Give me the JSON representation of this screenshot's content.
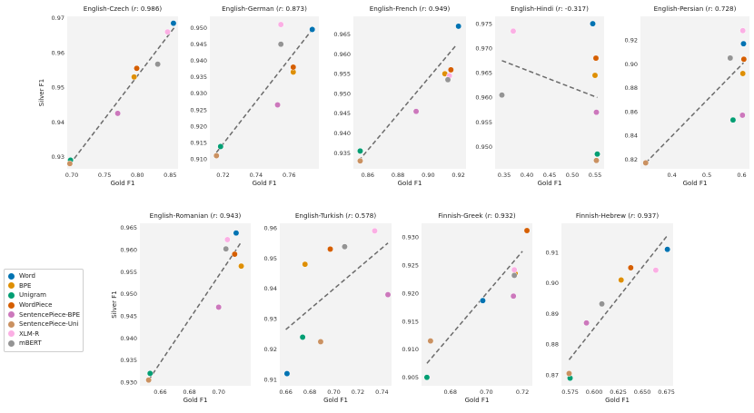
{
  "legend": {
    "items": [
      {
        "name": "Word",
        "color": "#0173b2"
      },
      {
        "name": "BPE",
        "color": "#de8f05"
      },
      {
        "name": "Unigram",
        "color": "#029e73"
      },
      {
        "name": "WordPiece",
        "color": "#d55e00"
      },
      {
        "name": "SentencePiece-BPE",
        "color": "#cc78bc"
      },
      {
        "name": "SentencePiece-Uni",
        "color": "#ca9161"
      },
      {
        "name": "XLM-R",
        "color": "#fbafe4"
      },
      {
        "name": "mBERT",
        "color": "#949494"
      }
    ]
  },
  "chart_data": [
    {
      "type": "scatter",
      "title": "English-Czech",
      "r": "0.986",
      "xlabel": "Gold F1",
      "ylabel": "Silver F1",
      "xlim": [
        0.693,
        0.862
      ],
      "ylim": [
        0.9265,
        0.9705
      ],
      "xticks": [
        "0.70",
        "0.75",
        "0.80",
        "0.85"
      ],
      "yticks": [
        "0.93",
        "0.94",
        "0.95",
        "0.96",
        "0.97"
      ],
      "xtick_values": [
        0.7,
        0.75,
        0.8,
        0.85
      ],
      "ytick_values": [
        0.93,
        0.94,
        0.95,
        0.96,
        0.97
      ],
      "trend": [
        [
          0.697,
          0.9278
        ],
        [
          0.856,
          0.9672
        ]
      ],
      "points": [
        {
          "name": "Word",
          "x": 0.855,
          "y": 0.9685
        },
        {
          "name": "BPE",
          "x": 0.795,
          "y": 0.953
        },
        {
          "name": "Unigram",
          "x": 0.698,
          "y": 0.929
        },
        {
          "name": "WordPiece",
          "x": 0.799,
          "y": 0.9555
        },
        {
          "name": "SentencePiece-BPE",
          "x": 0.77,
          "y": 0.9425
        },
        {
          "name": "SentencePiece-Uni",
          "x": 0.697,
          "y": 0.928
        },
        {
          "name": "XLM-R",
          "x": 0.846,
          "y": 0.966
        },
        {
          "name": "mBERT",
          "x": 0.831,
          "y": 0.9567
        }
      ]
    },
    {
      "type": "scatter",
      "title": "English-German",
      "r": "0.873",
      "xlabel": "Gold F1",
      "ylabel": "",
      "xlim": [
        0.712,
        0.778
      ],
      "ylim": [
        0.907,
        0.9535
      ],
      "xticks": [
        "0.72",
        "0.74",
        "0.76"
      ],
      "yticks": [
        "0.910",
        "0.915",
        "0.920",
        "0.925",
        "0.930",
        "0.935",
        "0.940",
        "0.945",
        "0.950"
      ],
      "xtick_values": [
        0.72,
        0.74,
        0.76
      ],
      "ytick_values": [
        0.91,
        0.915,
        0.92,
        0.925,
        0.93,
        0.935,
        0.94,
        0.945,
        0.95
      ],
      "trend": [
        [
          0.716,
          0.912
        ],
        [
          0.774,
          0.9495
        ]
      ],
      "points": [
        {
          "name": "Word",
          "x": 0.774,
          "y": 0.9495
        },
        {
          "name": "BPE",
          "x": 0.7625,
          "y": 0.9365
        },
        {
          "name": "Unigram",
          "x": 0.7185,
          "y": 0.9138
        },
        {
          "name": "WordPiece",
          "x": 0.7625,
          "y": 0.938
        },
        {
          "name": "SentencePiece-BPE",
          "x": 0.753,
          "y": 0.9265
        },
        {
          "name": "SentencePiece-Uni",
          "x": 0.716,
          "y": 0.911
        },
        {
          "name": "XLM-R",
          "x": 0.755,
          "y": 0.951
        },
        {
          "name": "mBERT",
          "x": 0.755,
          "y": 0.945
        }
      ]
    },
    {
      "type": "scatter",
      "title": "English-French",
      "r": "0.949",
      "xlabel": "Gold F1",
      "ylabel": "",
      "xlim": [
        0.8505,
        0.925
      ],
      "ylim": [
        0.931,
        0.9695
      ],
      "xticks": [
        "0.86",
        "0.88",
        "0.90",
        "0.92"
      ],
      "yticks": [
        "0.935",
        "0.940",
        "0.945",
        "0.950",
        "0.955",
        "0.960",
        "0.965"
      ],
      "xtick_values": [
        0.86,
        0.88,
        0.9,
        0.92
      ],
      "ytick_values": [
        0.935,
        0.94,
        0.945,
        0.95,
        0.955,
        0.96,
        0.965
      ],
      "trend": [
        [
          0.854,
          0.933
        ],
        [
          0.918,
          0.962
        ]
      ],
      "points": [
        {
          "name": "Word",
          "x": 0.92,
          "y": 0.967
        },
        {
          "name": "BPE",
          "x": 0.911,
          "y": 0.955
        },
        {
          "name": "Unigram",
          "x": 0.855,
          "y": 0.9355
        },
        {
          "name": "WordPiece",
          "x": 0.915,
          "y": 0.956
        },
        {
          "name": "SentencePiece-BPE",
          "x": 0.892,
          "y": 0.9455
        },
        {
          "name": "SentencePiece-Uni",
          "x": 0.855,
          "y": 0.933
        },
        {
          "name": "XLM-R",
          "x": 0.914,
          "y": 0.9545
        },
        {
          "name": "mBERT",
          "x": 0.913,
          "y": 0.9535
        }
      ]
    },
    {
      "type": "scatter",
      "title": "English-Hindi",
      "r": "-0.317",
      "xlabel": "Gold F1",
      "ylabel": "",
      "xlim": [
        0.33,
        0.57
      ],
      "ylim": [
        0.9455,
        0.9765
      ],
      "xticks": [
        "0.35",
        "0.40",
        "0.45",
        "0.50",
        "0.55"
      ],
      "yticks": [
        "0.950",
        "0.955",
        "0.960",
        "0.965",
        "0.970",
        "0.975"
      ],
      "xtick_values": [
        0.35,
        0.4,
        0.45,
        0.5,
        0.55
      ],
      "ytick_values": [
        0.95,
        0.955,
        0.96,
        0.965,
        0.97,
        0.975
      ],
      "trend": [
        [
          0.345,
          0.9675
        ],
        [
          0.555,
          0.96
        ]
      ],
      "points": [
        {
          "name": "Word",
          "x": 0.545,
          "y": 0.975
        },
        {
          "name": "BPE",
          "x": 0.55,
          "y": 0.9645
        },
        {
          "name": "Unigram",
          "x": 0.555,
          "y": 0.9485
        },
        {
          "name": "WordPiece",
          "x": 0.552,
          "y": 0.968
        },
        {
          "name": "SentencePiece-BPE",
          "x": 0.553,
          "y": 0.957
        },
        {
          "name": "SentencePiece-Uni",
          "x": 0.553,
          "y": 0.9472
        },
        {
          "name": "XLM-R",
          "x": 0.37,
          "y": 0.9735
        },
        {
          "name": "mBERT",
          "x": 0.345,
          "y": 0.9605
        }
      ]
    },
    {
      "type": "scatter",
      "title": "English-Persian",
      "r": "0.728",
      "xlabel": "Gold F1",
      "ylabel": "",
      "xlim": [
        0.31,
        0.622
      ],
      "ylim": [
        0.812,
        0.94
      ],
      "xticks": [
        "0.4",
        "0.5",
        "0.6"
      ],
      "yticks": [
        "0.82",
        "0.84",
        "0.86",
        "0.88",
        "0.90",
        "0.92"
      ],
      "xtick_values": [
        0.4,
        0.5,
        0.6
      ],
      "ytick_values": [
        0.82,
        0.84,
        0.86,
        0.88,
        0.9,
        0.92
      ],
      "trend": [
        [
          0.325,
          0.817
        ],
        [
          0.605,
          0.901
        ]
      ],
      "points": [
        {
          "name": "Word",
          "x": 0.605,
          "y": 0.917
        },
        {
          "name": "BPE",
          "x": 0.603,
          "y": 0.892
        },
        {
          "name": "Unigram",
          "x": 0.575,
          "y": 0.853
        },
        {
          "name": "WordPiece",
          "x": 0.606,
          "y": 0.904
        },
        {
          "name": "SentencePiece-BPE",
          "x": 0.602,
          "y": 0.857
        },
        {
          "name": "SentencePiece-Uni",
          "x": 0.325,
          "y": 0.817
        },
        {
          "name": "XLM-R",
          "x": 0.603,
          "y": 0.928
        },
        {
          "name": "mBERT",
          "x": 0.567,
          "y": 0.905
        }
      ]
    },
    {
      "type": "scatter",
      "title": "English-Romanian",
      "r": "0.943",
      "xlabel": "Gold F1",
      "ylabel": "Silver F1",
      "xlim": [
        0.646,
        0.722
      ],
      "ylim": [
        0.9292,
        0.966
      ],
      "xticks": [
        "0.66",
        "0.68",
        "0.70"
      ],
      "yticks": [
        "0.930",
        "0.935",
        "0.940",
        "0.945",
        "0.950",
        "0.955",
        "0.960",
        "0.965"
      ],
      "xtick_values": [
        0.66,
        0.68,
        0.7
      ],
      "ytick_values": [
        0.93,
        0.935,
        0.94,
        0.945,
        0.95,
        0.955,
        0.96,
        0.965
      ],
      "trend": [
        [
          0.652,
          0.9305
        ],
        [
          0.715,
          0.9615
        ]
      ],
      "points": [
        {
          "name": "Word",
          "x": 0.712,
          "y": 0.9638
        },
        {
          "name": "BPE",
          "x": 0.7155,
          "y": 0.9563
        },
        {
          "name": "Unigram",
          "x": 0.653,
          "y": 0.932
        },
        {
          "name": "WordPiece",
          "x": 0.711,
          "y": 0.959
        },
        {
          "name": "SentencePiece-BPE",
          "x": 0.7,
          "y": 0.947
        },
        {
          "name": "SentencePiece-Uni",
          "x": 0.652,
          "y": 0.9305
        },
        {
          "name": "XLM-R",
          "x": 0.706,
          "y": 0.9623
        },
        {
          "name": "mBERT",
          "x": 0.705,
          "y": 0.9602
        }
      ]
    },
    {
      "type": "scatter",
      "title": "English-Turkish",
      "r": "0.578",
      "xlabel": "Gold F1",
      "ylabel": "",
      "xlim": [
        0.655,
        0.748
      ],
      "ylim": [
        0.908,
        0.9615
      ],
      "xticks": [
        "0.66",
        "0.68",
        "0.70",
        "0.72",
        "0.74"
      ],
      "yticks": [
        "0.91",
        "0.92",
        "0.93",
        "0.94",
        "0.95",
        "0.96"
      ],
      "xtick_values": [
        0.66,
        0.68,
        0.7,
        0.72,
        0.74
      ],
      "ytick_values": [
        0.91,
        0.92,
        0.93,
        0.94,
        0.95,
        0.96
      ],
      "trend": [
        [
          0.66,
          0.9265
        ],
        [
          0.745,
          0.955
        ]
      ],
      "points": [
        {
          "name": "Word",
          "x": 0.661,
          "y": 0.912
        },
        {
          "name": "BPE",
          "x": 0.676,
          "y": 0.948
        },
        {
          "name": "Unigram",
          "x": 0.674,
          "y": 0.924
        },
        {
          "name": "WordPiece",
          "x": 0.697,
          "y": 0.953
        },
        {
          "name": "SentencePiece-BPE",
          "x": 0.745,
          "y": 0.938
        },
        {
          "name": "SentencePiece-Uni",
          "x": 0.689,
          "y": 0.9225
        },
        {
          "name": "XLM-R",
          "x": 0.734,
          "y": 0.959
        },
        {
          "name": "mBERT",
          "x": 0.709,
          "y": 0.9538
        }
      ]
    },
    {
      "type": "scatter",
      "title": "Finnish-Greek",
      "r": "0.932",
      "xlabel": "Gold F1",
      "ylabel": "",
      "xlim": [
        0.664,
        0.7255
      ],
      "ylim": [
        0.9035,
        0.9325
      ],
      "xticks": [
        "0.68",
        "0.70",
        "0.72"
      ],
      "yticks": [
        "0.905",
        "0.910",
        "0.915",
        "0.920",
        "0.925",
        "0.930"
      ],
      "xtick_values": [
        0.68,
        0.7,
        0.72
      ],
      "ytick_values": [
        0.905,
        0.91,
        0.915,
        0.92,
        0.925,
        0.93
      ],
      "trend": [
        [
          0.667,
          0.9075
        ],
        [
          0.72,
          0.9275
        ]
      ],
      "points": [
        {
          "name": "Word",
          "x": 0.698,
          "y": 0.9187
        },
        {
          "name": "BPE",
          "x": 0.716,
          "y": 0.9235
        },
        {
          "name": "Unigram",
          "x": 0.667,
          "y": 0.905
        },
        {
          "name": "WordPiece",
          "x": 0.7225,
          "y": 0.9312
        },
        {
          "name": "SentencePiece-BPE",
          "x": 0.715,
          "y": 0.9195
        },
        {
          "name": "SentencePiece-Uni",
          "x": 0.669,
          "y": 0.9115
        },
        {
          "name": "XLM-R",
          "x": 0.7155,
          "y": 0.9242
        },
        {
          "name": "mBERT",
          "x": 0.7155,
          "y": 0.9232
        }
      ]
    },
    {
      "type": "scatter",
      "title": "Finnish-Hebrew",
      "r": "0.937",
      "xlabel": "Gold F1",
      "ylabel": "",
      "xlim": [
        0.566,
        0.682
      ],
      "ylim": [
        0.8665,
        0.9195
      ],
      "xticks": [
        "0.575",
        "0.600",
        "0.625",
        "0.650",
        "0.675"
      ],
      "yticks": [
        "0.87",
        "0.88",
        "0.89",
        "0.90",
        "0.91"
      ],
      "xtick_values": [
        0.575,
        0.6,
        0.625,
        0.65,
        0.675
      ],
      "ytick_values": [
        0.87,
        0.88,
        0.89,
        0.9,
        0.91
      ],
      "trend": [
        [
          0.574,
          0.875
        ],
        [
          0.676,
          0.9155
        ]
      ],
      "points": [
        {
          "name": "Word",
          "x": 0.676,
          "y": 0.911
        },
        {
          "name": "BPE",
          "x": 0.628,
          "y": 0.901
        },
        {
          "name": "Unigram",
          "x": 0.575,
          "y": 0.869
        },
        {
          "name": "WordPiece",
          "x": 0.638,
          "y": 0.905
        },
        {
          "name": "SentencePiece-BPE",
          "x": 0.592,
          "y": 0.887
        },
        {
          "name": "SentencePiece-Uni",
          "x": 0.574,
          "y": 0.8705
        },
        {
          "name": "XLM-R",
          "x": 0.664,
          "y": 0.9042
        },
        {
          "name": "mBERT",
          "x": 0.608,
          "y": 0.8932
        }
      ]
    }
  ]
}
